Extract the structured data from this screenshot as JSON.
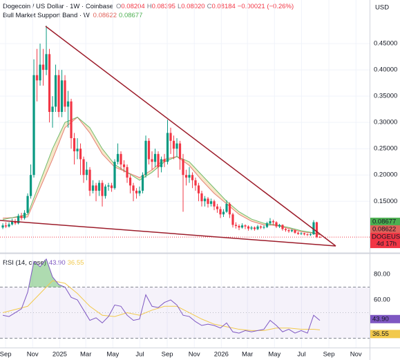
{
  "chart_data": [
    {
      "type": "candlestick",
      "title": "Dogecoin / US Dollar · 1W · Coinbase",
      "ohlc_legend": [
        {
          "label": "O",
          "value": "0.08204"
        },
        {
          "label": "H",
          "value": "0.08395"
        },
        {
          "label": "L",
          "value": "0.08020"
        },
        {
          "label": "C",
          "value": "0.08184"
        }
      ],
      "change": "−0.00021 (−0.26%)",
      "currency": "USD",
      "symbol_tag": "DOGEUSD",
      "countdown": "4d 17h",
      "up_color": "#089981",
      "down_color": "#f23645",
      "open": [
        0.1,
        0.104,
        0.102,
        0.106,
        0.112,
        0.108,
        0.122,
        0.118,
        0.128,
        0.16,
        0.2,
        0.39,
        0.38,
        0.41,
        0.4,
        0.43,
        0.32,
        0.33,
        0.39,
        0.32,
        0.38,
        0.33,
        0.34,
        0.27,
        0.245,
        0.25,
        0.23,
        0.2,
        0.21,
        0.17,
        0.18,
        0.17,
        0.185,
        0.16,
        0.178,
        0.18,
        0.175,
        0.225,
        0.24,
        0.22,
        0.215,
        0.195,
        0.18,
        0.17,
        0.165,
        0.17,
        0.2,
        0.265,
        0.23,
        0.225,
        0.24,
        0.215,
        0.23,
        0.225,
        0.28,
        0.265,
        0.25,
        0.26,
        0.23,
        0.2,
        0.195,
        0.2,
        0.19,
        0.18,
        0.165,
        0.15,
        0.155,
        0.145,
        0.15,
        0.14,
        0.135,
        0.125,
        0.13,
        0.145,
        0.125,
        0.105,
        0.103,
        0.1,
        0.104,
        0.102,
        0.098,
        0.1,
        0.097,
        0.102,
        0.1,
        0.101,
        0.108,
        0.112,
        0.11,
        0.102,
        0.105,
        0.097,
        0.095,
        0.093,
        0.095,
        0.09,
        0.088,
        0.089,
        0.087,
        0.086,
        0.087,
        0.11,
        0.08204
      ],
      "high": [
        0.108,
        0.11,
        0.11,
        0.117,
        0.116,
        0.126,
        0.128,
        0.133,
        0.165,
        0.22,
        0.42,
        0.44,
        0.45,
        0.44,
        0.484,
        0.44,
        0.35,
        0.41,
        0.4,
        0.4,
        0.39,
        0.36,
        0.345,
        0.28,
        0.27,
        0.26,
        0.235,
        0.225,
        0.215,
        0.19,
        0.185,
        0.19,
        0.19,
        0.182,
        0.185,
        0.185,
        0.23,
        0.26,
        0.245,
        0.228,
        0.22,
        0.2,
        0.185,
        0.175,
        0.178,
        0.205,
        0.275,
        0.27,
        0.245,
        0.25,
        0.245,
        0.235,
        0.24,
        0.305,
        0.29,
        0.275,
        0.27,
        0.265,
        0.24,
        0.21,
        0.215,
        0.205,
        0.195,
        0.185,
        0.17,
        0.16,
        0.158,
        0.155,
        0.153,
        0.145,
        0.14,
        0.135,
        0.152,
        0.148,
        0.128,
        0.11,
        0.106,
        0.108,
        0.106,
        0.104,
        0.103,
        0.102,
        0.105,
        0.104,
        0.104,
        0.111,
        0.118,
        0.115,
        0.112,
        0.107,
        0.106,
        0.099,
        0.097,
        0.097,
        0.096,
        0.092,
        0.091,
        0.09,
        0.089,
        0.089,
        0.114,
        0.111,
        0.08395
      ],
      "low": [
        0.097,
        0.099,
        0.1,
        0.104,
        0.105,
        0.106,
        0.114,
        0.115,
        0.126,
        0.155,
        0.195,
        0.34,
        0.37,
        0.37,
        0.39,
        0.3,
        0.29,
        0.32,
        0.31,
        0.31,
        0.32,
        0.29,
        0.25,
        0.22,
        0.23,
        0.2,
        0.185,
        0.19,
        0.16,
        0.165,
        0.15,
        0.16,
        0.14,
        0.155,
        0.17,
        0.168,
        0.172,
        0.22,
        0.21,
        0.205,
        0.185,
        0.165,
        0.15,
        0.155,
        0.16,
        0.165,
        0.195,
        0.22,
        0.21,
        0.215,
        0.195,
        0.205,
        0.215,
        0.22,
        0.24,
        0.23,
        0.235,
        0.21,
        0.13,
        0.18,
        0.185,
        0.175,
        0.17,
        0.15,
        0.14,
        0.14,
        0.138,
        0.14,
        0.133,
        0.128,
        0.118,
        0.12,
        0.128,
        0.118,
        0.1,
        0.098,
        0.095,
        0.098,
        0.097,
        0.094,
        0.095,
        0.094,
        0.095,
        0.097,
        0.097,
        0.099,
        0.105,
        0.104,
        0.099,
        0.099,
        0.094,
        0.092,
        0.09,
        0.091,
        0.088,
        0.086,
        0.086,
        0.085,
        0.084,
        0.084,
        0.086,
        0.08,
        0.0802
      ],
      "close": [
        0.104,
        0.102,
        0.106,
        0.112,
        0.108,
        0.122,
        0.118,
        0.128,
        0.16,
        0.2,
        0.39,
        0.38,
        0.41,
        0.4,
        0.43,
        0.32,
        0.33,
        0.39,
        0.32,
        0.38,
        0.33,
        0.34,
        0.27,
        0.245,
        0.25,
        0.23,
        0.2,
        0.21,
        0.17,
        0.18,
        0.17,
        0.185,
        0.16,
        0.178,
        0.18,
        0.175,
        0.225,
        0.24,
        0.22,
        0.215,
        0.195,
        0.18,
        0.17,
        0.165,
        0.17,
        0.2,
        0.265,
        0.23,
        0.225,
        0.24,
        0.215,
        0.23,
        0.225,
        0.28,
        0.265,
        0.25,
        0.26,
        0.23,
        0.2,
        0.195,
        0.2,
        0.19,
        0.18,
        0.165,
        0.15,
        0.155,
        0.145,
        0.15,
        0.14,
        0.135,
        0.125,
        0.13,
        0.145,
        0.125,
        0.105,
        0.103,
        0.1,
        0.104,
        0.102,
        0.098,
        0.1,
        0.097,
        0.102,
        0.1,
        0.101,
        0.108,
        0.112,
        0.11,
        0.102,
        0.105,
        0.097,
        0.095,
        0.093,
        0.095,
        0.09,
        0.088,
        0.089,
        0.087,
        0.086,
        0.087,
        0.11,
        0.08204,
        0.08184
      ],
      "xlim": [
        -0.9,
        118
      ],
      "xticks": [
        {
          "value": 0.9,
          "label": "Sep"
        },
        {
          "value": 9.6,
          "label": "Nov"
        },
        {
          "value": 18.3,
          "label": "2025"
        },
        {
          "value": 26.7,
          "label": "Mar"
        },
        {
          "value": 35.4,
          "label": "May"
        },
        {
          "value": 44.1,
          "label": "Jul"
        },
        {
          "value": 52.9,
          "label": "Sep"
        },
        {
          "value": 61.6,
          "label": "Nov"
        },
        {
          "value": 70.3,
          "label": "2026"
        },
        {
          "value": 78.7,
          "label": "Mar"
        },
        {
          "value": 87.4,
          "label": "May"
        },
        {
          "value": 96.1,
          "label": "Jul"
        },
        {
          "value": 104.9,
          "label": "Sep"
        },
        {
          "value": 113.6,
          "label": "Nov"
        }
      ],
      "ylim": [
        0.053,
        0.533
      ],
      "yticks": [
        {
          "value": 0.15,
          "label": "0.15000"
        },
        {
          "value": 0.2,
          "label": "0.20000"
        },
        {
          "value": 0.25,
          "label": "0.25000"
        },
        {
          "value": 0.3,
          "label": "0.30000"
        },
        {
          "value": 0.35,
          "label": "0.35000"
        },
        {
          "value": 0.4,
          "label": "0.40000"
        },
        {
          "value": 0.45,
          "label": "0.45000"
        }
      ],
      "grid": true,
      "overlay": {
        "type": "band",
        "title": "Bull Market Support Band · W",
        "fill": "#f3dfb5",
        "x": [
          0,
          8,
          16,
          20,
          24,
          28,
          32,
          36,
          40,
          44,
          48,
          52,
          56,
          60,
          64,
          68,
          72,
          76,
          80,
          84,
          88,
          92,
          96,
          100,
          102
        ],
        "series": [
          {
            "color": "#e0625a",
            "values": [
              0.118,
              0.12,
              0.23,
              0.29,
              0.31,
              0.28,
              0.24,
              0.215,
              0.205,
              0.195,
              0.21,
              0.23,
              0.235,
              0.218,
              0.19,
              0.165,
              0.145,
              0.125,
              0.112,
              0.105,
              0.104,
              0.098,
              0.092,
              0.089,
              0.08622
            ]
          },
          {
            "color": "#4caf50",
            "values": [
              0.115,
              0.125,
              0.25,
              0.3,
              0.31,
              0.29,
              0.25,
              0.22,
              0.205,
              0.19,
              0.205,
              0.225,
              0.235,
              0.225,
              0.2,
              0.175,
              0.15,
              0.13,
              0.116,
              0.108,
              0.105,
              0.1,
              0.094,
              0.09,
              0.08677
            ]
          }
        ]
      }
    },
    {
      "type": "line",
      "title": "RSI (14, close)",
      "xlim": [
        -0.9,
        118
      ],
      "ylim": [
        22.7,
        95.7
      ],
      "yticks": [
        {
          "value": 80,
          "label": "80.00"
        },
        {
          "value": 60,
          "label": "60.00"
        }
      ],
      "bands": [
        70,
        50,
        30
      ],
      "band_fill": "#7e57c2",
      "overbought_fill": "#4caf50",
      "series": [
        {
          "color": "#7e57c2",
          "value_label": "43.90",
          "x": [
            0,
            2,
            4,
            6,
            8,
            10,
            12,
            14,
            16,
            18,
            20,
            22,
            24,
            26,
            28,
            30,
            32,
            34,
            36,
            38,
            40,
            42,
            44,
            46,
            48,
            50,
            52,
            54,
            56,
            58,
            60,
            62,
            64,
            66,
            68,
            70,
            72,
            74,
            76,
            78,
            80,
            82,
            84,
            86,
            88,
            90,
            92,
            94,
            96,
            98,
            100,
            102
          ],
          "values": [
            48,
            47,
            50,
            53,
            66,
            90,
            86,
            92,
            78,
            72,
            70,
            62,
            60,
            52,
            44,
            46,
            42,
            47,
            56,
            55,
            48,
            44,
            45,
            64,
            55,
            54,
            58,
            60,
            56,
            48,
            47,
            43,
            40,
            41,
            40,
            38,
            42,
            35,
            34,
            36,
            35,
            36,
            37,
            44,
            40,
            35,
            37,
            34,
            36,
            34,
            48,
            43.9
          ]
        },
        {
          "color": "#f2c94c",
          "value_label": "36.55",
          "x": [
            0,
            8,
            12,
            16,
            20,
            24,
            28,
            32,
            36,
            40,
            44,
            48,
            52,
            56,
            60,
            64,
            68,
            72,
            76,
            80,
            84,
            88,
            92,
            96,
            100,
            102
          ],
          "values": [
            50,
            55,
            65,
            75,
            73,
            65,
            55,
            48,
            47,
            50,
            48,
            52,
            55,
            55,
            50,
            45,
            41,
            39,
            37,
            36,
            36,
            38,
            38,
            37,
            37,
            36.55
          ]
        }
      ]
    }
  ]
}
